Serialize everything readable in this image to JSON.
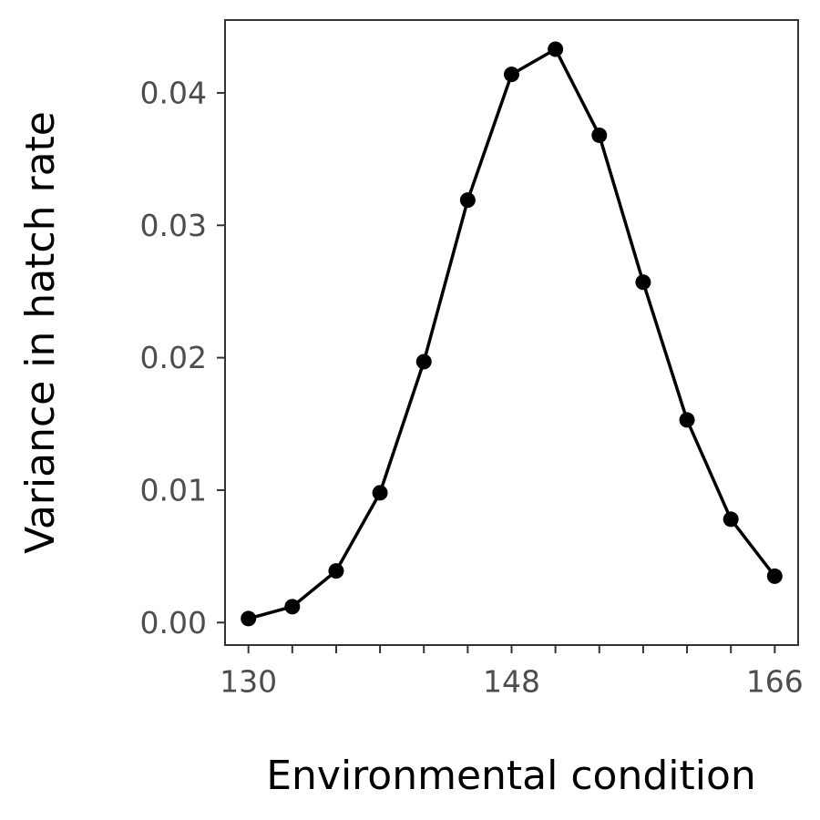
{
  "chart_data": {
    "type": "line",
    "title": "",
    "xlabel": "Environmental condition",
    "ylabel": "Variance in hatch rate",
    "x": [
      130,
      133,
      136,
      139,
      142,
      145,
      148,
      151,
      154,
      157,
      160,
      163,
      166
    ],
    "series": [
      {
        "values": [
          0.0003,
          0.0012,
          0.0039,
          0.0098,
          0.0197,
          0.0319,
          0.0414,
          0.0433,
          0.0368,
          0.0257,
          0.0153,
          0.0078,
          0.0035
        ]
      }
    ],
    "x_ticks": [
      130,
      133,
      136,
      139,
      142,
      145,
      148,
      151,
      154,
      157,
      160,
      163,
      166
    ],
    "x_tick_labels": [
      "130",
      "",
      "",
      "",
      "",
      "",
      "148",
      "",
      "",
      "",
      "",
      "",
      "166"
    ],
    "y_ticks": [
      0.0,
      0.01,
      0.02,
      0.03,
      0.04
    ],
    "y_tick_labels": [
      "0.00",
      "0.01",
      "0.02",
      "0.03",
      "0.04"
    ],
    "xlim": [
      128.4,
      167.6
    ],
    "ylim": [
      -0.0017,
      0.0455
    ],
    "grid": false,
    "legend": "none",
    "colors": {
      "line": "#000000",
      "point": "#000000",
      "frame": "#333333",
      "tick_text": "#4d4d4d",
      "title_text": "#000000"
    }
  }
}
